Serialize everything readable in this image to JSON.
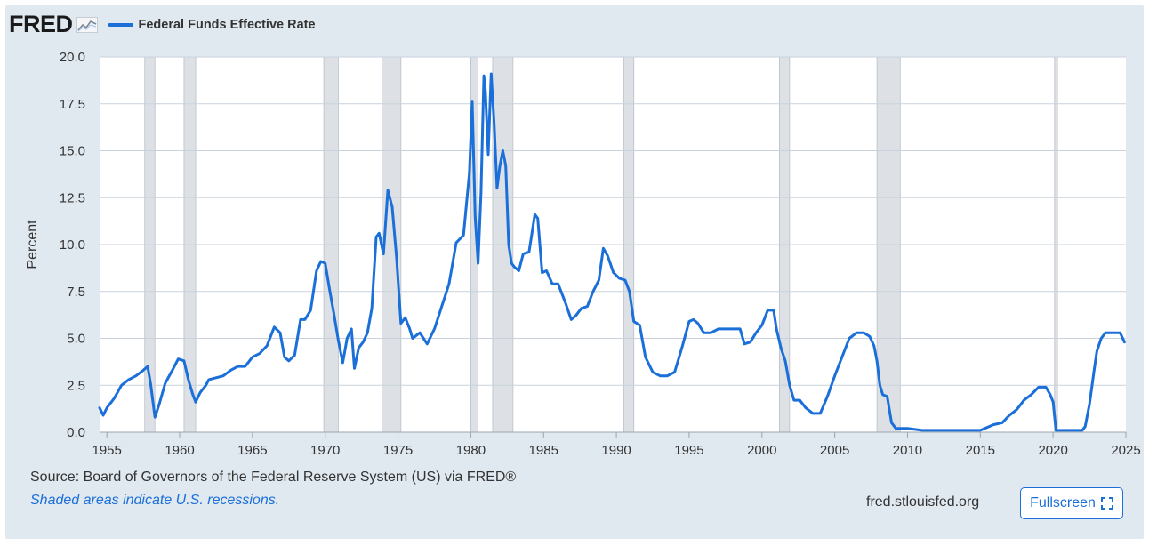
{
  "header": {
    "logo_text": "FRED",
    "legend_label": "Federal Funds Effective Rate"
  },
  "footer": {
    "source_text": "Source: Board of Governors of the Federal Reserve System (US) via FRED®",
    "recession_note": "Shaded areas indicate U.S. recessions.",
    "site_link": "fred.stlouisfed.org",
    "fullscreen_label": "Fullscreen"
  },
  "colors": {
    "series": "#1b6fd8",
    "panel_bg": "#e1e9f0",
    "plot_bg": "#ffffff",
    "recession_shade": "#dde1e6",
    "grid": "#c9d2dc"
  },
  "icons": {
    "logo_mark": "line-chart-icon",
    "fullscreen": "expand-icon"
  },
  "chart_data": {
    "type": "line",
    "title": "",
    "xlabel": "",
    "ylabel": "Percent",
    "xlim": [
      1954.5,
      2025.0
    ],
    "ylim": [
      0,
      20
    ],
    "grid": true,
    "legend_position": "top-left",
    "x_ticks": [
      1955,
      1960,
      1965,
      1970,
      1975,
      1980,
      1985,
      1990,
      1995,
      2000,
      2005,
      2010,
      2015,
      2020,
      2025
    ],
    "y_ticks": [
      0.0,
      2.5,
      5.0,
      7.5,
      10.0,
      12.5,
      15.0,
      17.5,
      20.0
    ],
    "y_tick_labels": [
      "0.0",
      "2.5",
      "5.0",
      "7.5",
      "10.0",
      "12.5",
      "15.0",
      "17.5",
      "20.0"
    ],
    "recessions": [
      [
        1957.6,
        1958.3
      ],
      [
        1960.3,
        1961.1
      ],
      [
        1969.9,
        1970.9
      ],
      [
        1973.9,
        1975.2
      ],
      [
        1980.0,
        1980.5
      ],
      [
        1981.5,
        1982.9
      ],
      [
        1990.5,
        1991.2
      ],
      [
        2001.2,
        2001.9
      ],
      [
        2007.9,
        2009.5
      ],
      [
        2020.1,
        2020.3
      ]
    ],
    "series": [
      {
        "name": "Federal Funds Effective Rate",
        "x": [
          1954.5,
          1954.75,
          1955.0,
          1955.5,
          1956.0,
          1956.5,
          1957.0,
          1957.5,
          1957.8,
          1958.0,
          1958.3,
          1958.6,
          1959.0,
          1959.5,
          1959.9,
          1960.3,
          1960.6,
          1960.9,
          1961.1,
          1961.4,
          1961.8,
          1962.0,
          1962.5,
          1963.0,
          1963.5,
          1964.0,
          1964.5,
          1965.0,
          1965.5,
          1966.0,
          1966.5,
          1966.9,
          1967.2,
          1967.5,
          1967.9,
          1968.3,
          1968.6,
          1969.0,
          1969.4,
          1969.7,
          1970.0,
          1970.3,
          1970.6,
          1970.9,
          1971.2,
          1971.5,
          1971.8,
          1972.0,
          1972.3,
          1972.6,
          1972.9,
          1973.2,
          1973.5,
          1973.7,
          1974.0,
          1974.3,
          1974.6,
          1974.9,
          1975.2,
          1975.5,
          1975.8,
          1976.0,
          1976.5,
          1977.0,
          1977.5,
          1978.0,
          1978.5,
          1979.0,
          1979.5,
          1979.9,
          1980.1,
          1980.3,
          1980.5,
          1980.7,
          1980.9,
          1981.0,
          1981.2,
          1981.4,
          1981.6,
          1981.8,
          1982.0,
          1982.2,
          1982.4,
          1982.6,
          1982.8,
          1983.0,
          1983.3,
          1983.6,
          1984.0,
          1984.4,
          1984.6,
          1984.9,
          1985.2,
          1985.6,
          1986.0,
          1986.5,
          1986.9,
          1987.2,
          1987.6,
          1988.0,
          1988.4,
          1988.8,
          1989.1,
          1989.4,
          1989.8,
          1990.2,
          1990.6,
          1990.9,
          1991.2,
          1991.6,
          1992.0,
          1992.5,
          1993.0,
          1993.5,
          1994.0,
          1994.5,
          1995.0,
          1995.3,
          1995.6,
          1996.0,
          1996.5,
          1997.0,
          1997.5,
          1998.0,
          1998.5,
          1998.8,
          1999.2,
          1999.6,
          2000.0,
          2000.4,
          2000.8,
          2001.0,
          2001.3,
          2001.6,
          2001.9,
          2002.2,
          2002.6,
          2003.0,
          2003.5,
          2004.0,
          2004.5,
          2005.0,
          2005.5,
          2006.0,
          2006.5,
          2007.0,
          2007.4,
          2007.7,
          2007.9,
          2008.1,
          2008.3,
          2008.6,
          2008.9,
          2009.2,
          2010.0,
          2011.0,
          2012.0,
          2013.0,
          2014.0,
          2015.0,
          2015.9,
          2016.5,
          2017.0,
          2017.5,
          2018.0,
          2018.5,
          2019.0,
          2019.5,
          2019.8,
          2020.0,
          2020.2,
          2020.4,
          2021.0,
          2022.0,
          2022.2,
          2022.5,
          2022.8,
          2023.0,
          2023.3,
          2023.6,
          2024.0,
          2024.3,
          2024.6,
          2024.9
        ],
        "values": [
          1.3,
          0.9,
          1.3,
          1.8,
          2.5,
          2.8,
          3.0,
          3.3,
          3.5,
          2.6,
          0.8,
          1.5,
          2.6,
          3.3,
          3.9,
          3.8,
          2.8,
          2.0,
          1.6,
          2.1,
          2.5,
          2.8,
          2.9,
          3.0,
          3.3,
          3.5,
          3.5,
          4.0,
          4.2,
          4.6,
          5.6,
          5.3,
          4.0,
          3.8,
          4.1,
          6.0,
          6.0,
          6.5,
          8.6,
          9.1,
          9.0,
          7.6,
          6.3,
          4.9,
          3.7,
          5.0,
          5.5,
          3.4,
          4.5,
          4.8,
          5.3,
          6.6,
          10.4,
          10.6,
          9.5,
          12.9,
          12.0,
          9.3,
          5.8,
          6.1,
          5.5,
          5.0,
          5.3,
          4.7,
          5.5,
          6.7,
          7.9,
          10.1,
          10.5,
          13.8,
          17.6,
          11.5,
          9.0,
          12.8,
          19.0,
          18.2,
          14.8,
          19.1,
          16.5,
          13.0,
          14.2,
          15.0,
          14.2,
          10.0,
          9.0,
          8.8,
          8.6,
          9.5,
          9.6,
          11.6,
          11.4,
          8.5,
          8.6,
          7.9,
          7.9,
          6.9,
          6.0,
          6.2,
          6.6,
          6.7,
          7.5,
          8.1,
          9.8,
          9.4,
          8.5,
          8.2,
          8.1,
          7.5,
          5.9,
          5.7,
          4.0,
          3.2,
          3.0,
          3.0,
          3.2,
          4.5,
          5.9,
          6.0,
          5.8,
          5.3,
          5.3,
          5.5,
          5.5,
          5.5,
          5.5,
          4.7,
          4.8,
          5.3,
          5.7,
          6.5,
          6.5,
          5.5,
          4.5,
          3.8,
          2.5,
          1.7,
          1.7,
          1.3,
          1.0,
          1.0,
          1.9,
          3.0,
          4.0,
          5.0,
          5.3,
          5.3,
          5.1,
          4.6,
          3.8,
          2.5,
          2.0,
          1.9,
          0.5,
          0.2,
          0.2,
          0.1,
          0.1,
          0.1,
          0.1,
          0.1,
          0.4,
          0.5,
          0.9,
          1.2,
          1.7,
          2.0,
          2.4,
          2.4,
          2.0,
          1.6,
          0.1,
          0.1,
          0.1,
          0.1,
          0.3,
          1.5,
          3.2,
          4.3,
          5.0,
          5.3,
          5.3,
          5.3,
          5.3,
          4.8
        ]
      }
    ]
  }
}
